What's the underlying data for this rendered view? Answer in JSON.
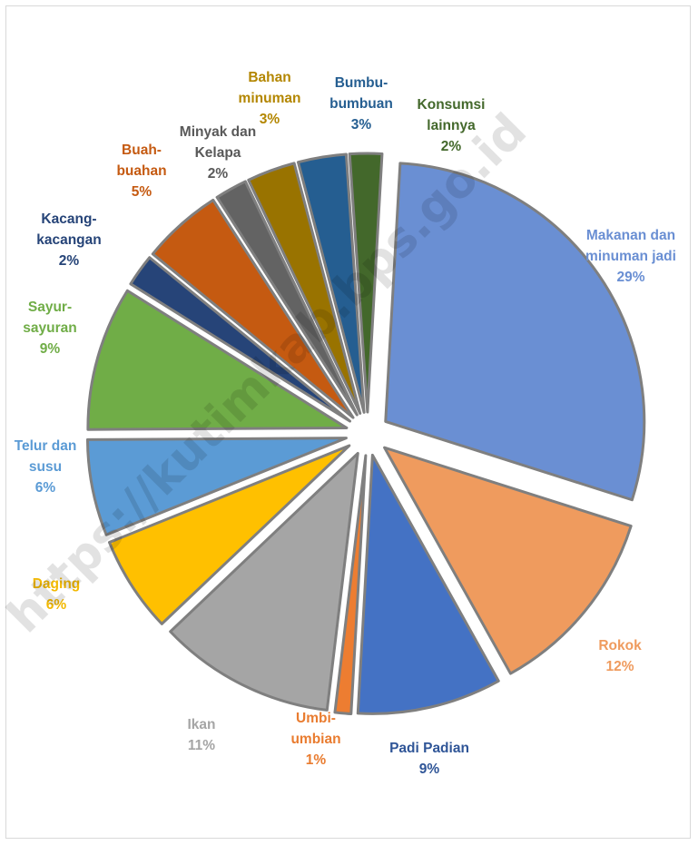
{
  "chart_data": {
    "type": "pie",
    "title": "",
    "slices": [
      {
        "name": "Makanan dan minuman jadi",
        "label_lines": [
          "Makanan dan",
          "minuman jadi"
        ],
        "value": 29,
        "pct": "29%",
        "color": "#6a8fd3",
        "text_color": "#6a8fd3"
      },
      {
        "name": "Rokok",
        "label_lines": [
          "Rokok"
        ],
        "value": 12,
        "pct": "12%",
        "color": "#ef9b5e",
        "text_color": "#ef9b5e"
      },
      {
        "name": "Padi Padian",
        "label_lines": [
          "Padi Padian"
        ],
        "value": 9,
        "pct": "9%",
        "color": "#4472c4",
        "text_color": "#2f5597"
      },
      {
        "name": "Umbi-umbian",
        "label_lines": [
          "Umbi-",
          "umbian"
        ],
        "value": 1,
        "pct": "1%",
        "color": "#ed7d31",
        "text_color": "#e97c30"
      },
      {
        "name": "Ikan",
        "label_lines": [
          "Ikan"
        ],
        "value": 11,
        "pct": "11%",
        "color": "#a5a5a5",
        "text_color": "#a5a5a5"
      },
      {
        "name": "Daging",
        "label_lines": [
          "Daging"
        ],
        "value": 6,
        "pct": "6%",
        "color": "#ffc000",
        "text_color": "#f2b800"
      },
      {
        "name": "Telur dan susu",
        "label_lines": [
          "Telur dan",
          "susu"
        ],
        "value": 6,
        "pct": "6%",
        "color": "#5b9bd5",
        "text_color": "#5b9bd5"
      },
      {
        "name": "Sayur-sayuran",
        "label_lines": [
          "Sayur-",
          "sayuran"
        ],
        "value": 9,
        "pct": "9%",
        "color": "#70ad47",
        "text_color": "#70ad47"
      },
      {
        "name": "Kacang-kacangan",
        "label_lines": [
          "Kacang-",
          "kacangan"
        ],
        "value": 2,
        "pct": "2%",
        "color": "#264478",
        "text_color": "#264478"
      },
      {
        "name": "Buah-buahan",
        "label_lines": [
          "Buah-",
          "buahan"
        ],
        "value": 5,
        "pct": "5%",
        "color": "#c55a11",
        "text_color": "#c55a11"
      },
      {
        "name": "Minyak dan Kelapa",
        "label_lines": [
          "Minyak dan",
          "Kelapa"
        ],
        "value": 2,
        "pct": "2%",
        "color": "#636363",
        "text_color": "#595959"
      },
      {
        "name": "Bahan minuman",
        "label_lines": [
          "Bahan",
          "minuman"
        ],
        "value": 3,
        "pct": "3%",
        "color": "#997300",
        "text_color": "#b38600"
      },
      {
        "name": "Bumbu-bumbuan",
        "label_lines": [
          "Bumbu-",
          "bumbuan"
        ],
        "value": 3,
        "pct": "3%",
        "color": "#255e91",
        "text_color": "#255e91"
      },
      {
        "name": "Konsumsi lainnya",
        "label_lines": [
          "Konsumsi",
          "lainnya"
        ],
        "value": 2,
        "pct": "2%",
        "color": "#43682b",
        "text_color": "#43682b"
      }
    ]
  },
  "watermark": "https://kutimkab.bps.go.id"
}
